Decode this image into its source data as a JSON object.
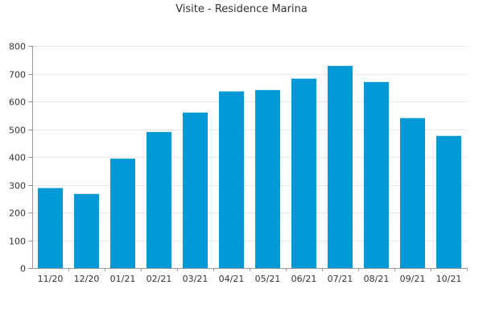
{
  "chart_data": {
    "type": "bar",
    "title": "Visite - Residence Marina",
    "xlabel": "",
    "ylabel": "",
    "categories": [
      "11/20",
      "12/20",
      "01/21",
      "02/21",
      "03/21",
      "04/21",
      "05/21",
      "06/21",
      "07/21",
      "08/21",
      "09/21",
      "10/21"
    ],
    "values": [
      288,
      267,
      394,
      490,
      560,
      636,
      641,
      682,
      728,
      670,
      540,
      476
    ],
    "ylim": [
      0,
      800
    ],
    "yticks": [
      0,
      100,
      200,
      300,
      400,
      500,
      600,
      700,
      800
    ],
    "grid": true,
    "legend": "none",
    "colors": {
      "bar": "#0099d6",
      "grid": "#e5e5e5",
      "axis": "#999999",
      "text": "#333333",
      "background": "#ffffff"
    }
  }
}
